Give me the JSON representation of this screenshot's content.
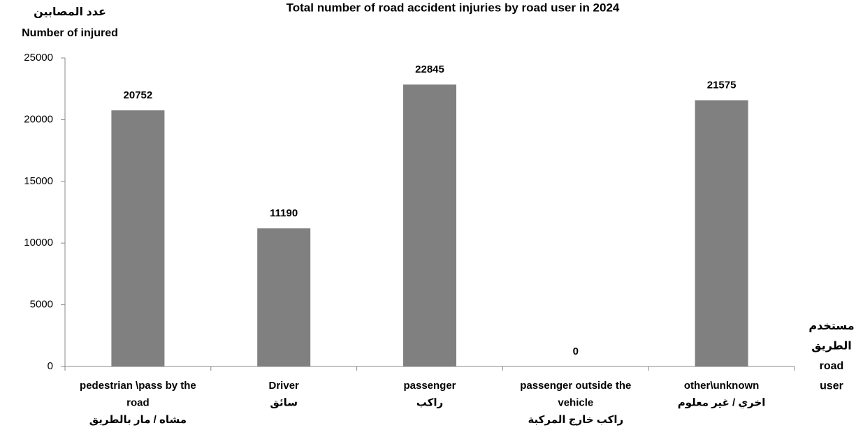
{
  "chart_data": {
    "type": "bar",
    "title": "Total number of road accident injuries by road user in 2024",
    "y_label": [
      "عدد المصابين",
      "Number of injured"
    ],
    "x_label": [
      "مستخدم",
      "الطريق",
      "road",
      "user"
    ],
    "categories": [
      [
        "pedestrian \\pass by the",
        "road",
        "مشاه / مار بالطريق"
      ],
      [
        "Driver",
        "سائق"
      ],
      [
        "passenger",
        "راكب"
      ],
      [
        "passenger outside the",
        "vehicle",
        "راكب خارج المركبة"
      ],
      [
        "other\\unknown",
        "اخري / غير معلوم"
      ]
    ],
    "values": [
      20752,
      11190,
      22845,
      0,
      21575
    ],
    "color": "#808080",
    "ylim": [
      0,
      25000
    ],
    "yticks": [
      0,
      5000,
      10000,
      15000,
      20000,
      25000
    ],
    "grid": false
  }
}
